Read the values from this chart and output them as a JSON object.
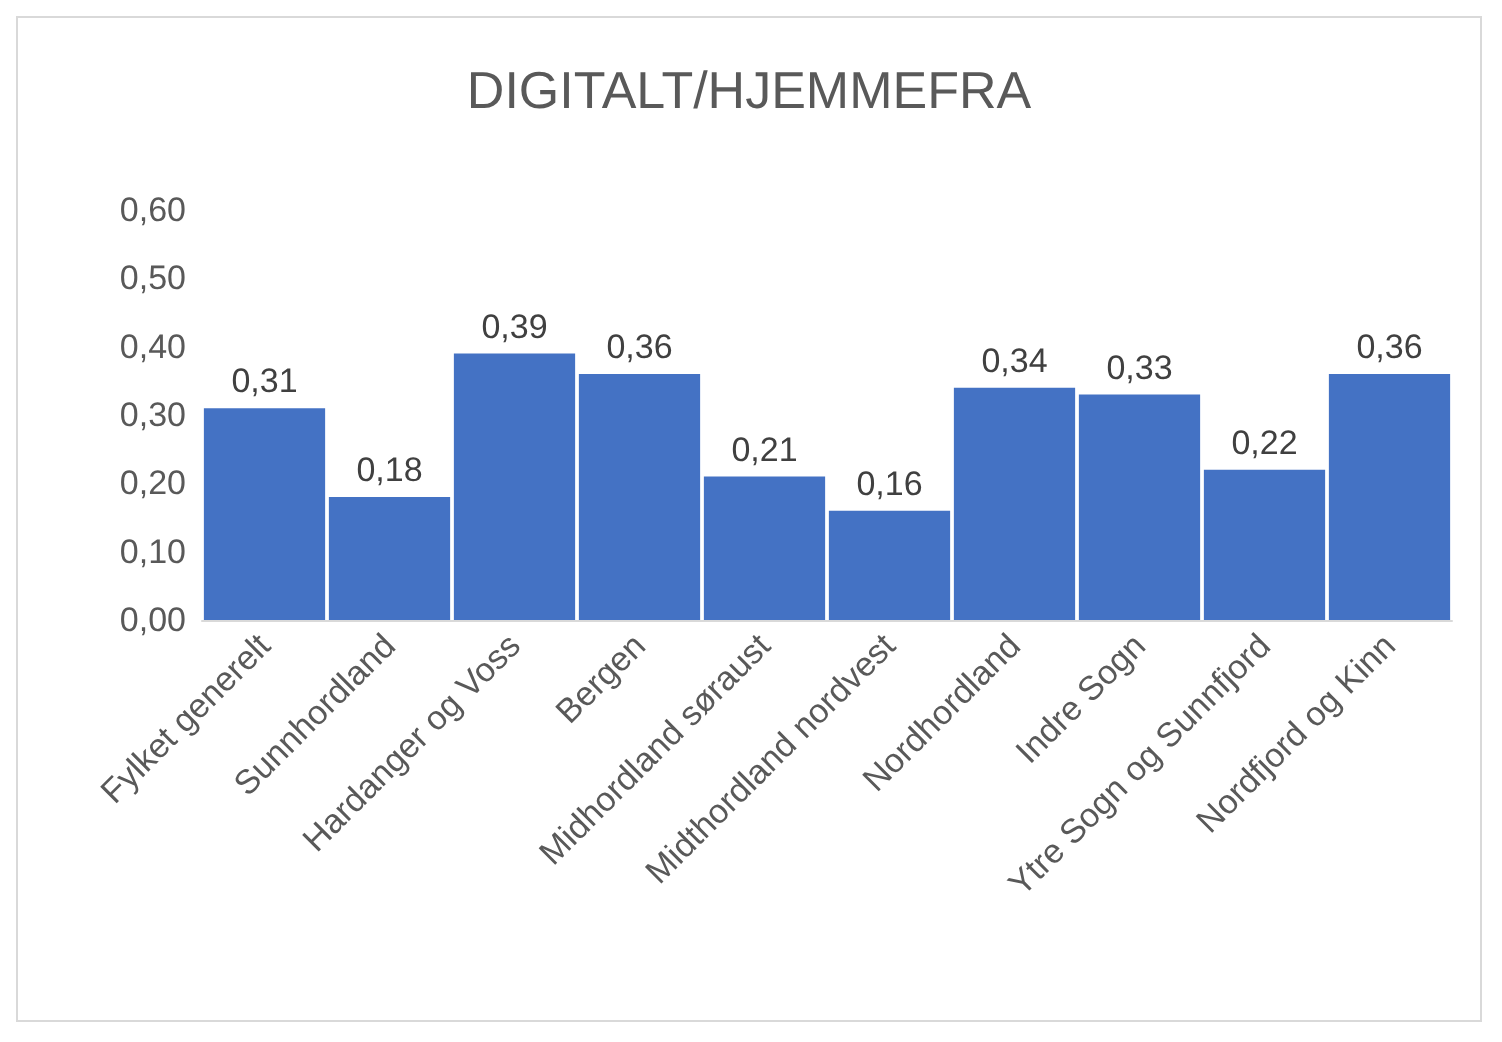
{
  "chart_data": {
    "type": "bar",
    "title": "DIGITALT/HJEMMEFRA",
    "categories": [
      "Fylket generelt",
      "Sunnhordland",
      "Hardanger og Voss",
      "Bergen",
      "Midhordland søraust",
      "Midthordland nordvest",
      "Nordhordland",
      "Indre Sogn",
      "Ytre Sogn og Sunnfjord",
      "Nordfjord og Kinn"
    ],
    "values": [
      0.31,
      0.18,
      0.39,
      0.36,
      0.21,
      0.16,
      0.34,
      0.33,
      0.22,
      0.36
    ],
    "value_labels": [
      "0,31",
      "0,18",
      "0,39",
      "0,36",
      "0,21",
      "0,16",
      "0,34",
      "0,33",
      "0,22",
      "0,36"
    ],
    "color": "#4472c4",
    "ylim": [
      0,
      0.6
    ],
    "yticks": [
      {
        "value": 0,
        "label": "0,00"
      },
      {
        "value": 0.1,
        "label": "0,10"
      },
      {
        "value": 0.2,
        "label": "0,20"
      },
      {
        "value": 0.3,
        "label": "0,30"
      },
      {
        "value": 0.4,
        "label": "0,40"
      },
      {
        "value": 0.5,
        "label": "0,50"
      },
      {
        "value": 0.6,
        "label": "0,60"
      }
    ],
    "grid": false
  }
}
